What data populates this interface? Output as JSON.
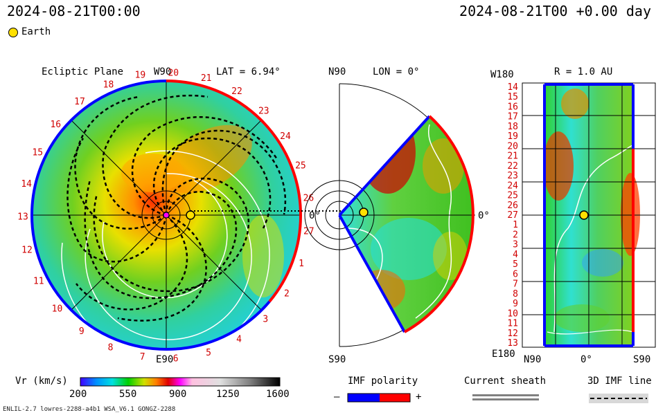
{
  "header": {
    "datetime_left": "2024-08-21T00:00",
    "datetime_right": "2024-08-21T00 +0.00 day"
  },
  "legend": {
    "earth_label": "Earth"
  },
  "ecliptic": {
    "title": "Ecliptic Plane",
    "top_label": "W90",
    "lat_label": "LAT = 6.94°",
    "bottom_label": "E90",
    "right_label": "0°",
    "rim_numbers": [
      "20",
      "21",
      "22",
      "23",
      "24",
      "25",
      "26",
      "27",
      "1",
      "2",
      "3",
      "4",
      "5",
      "6",
      "7",
      "8",
      "9",
      "10",
      "11",
      "12",
      "13",
      "14",
      "15",
      "16",
      "17",
      "18",
      "19"
    ]
  },
  "meridional": {
    "top_label": "N90",
    "lon_label": "LON = 0°",
    "bottom_label": "S90",
    "right_label": "0°"
  },
  "radial": {
    "w_label": "W180",
    "r_label": "R = 1.0 AU",
    "e_label": "E180",
    "x_left": "N90",
    "x_center": "0°",
    "x_right": "S90",
    "y_labels": [
      "14",
      "15",
      "16",
      "17",
      "18",
      "19",
      "20",
      "21",
      "22",
      "23",
      "24",
      "25",
      "26",
      "27",
      "1",
      "2",
      "3",
      "4",
      "5",
      "6",
      "7",
      "8",
      "9",
      "10",
      "11",
      "12",
      "13"
    ]
  },
  "colorbar": {
    "label": "Vr (km/s)",
    "ticks": [
      "200",
      "550",
      "900",
      "1250",
      "1600"
    ]
  },
  "imf": {
    "title": "IMF polarity",
    "minus": "–",
    "plus": "+",
    "minus_color": "#0000ff",
    "plus_color": "#ff0000"
  },
  "sheath": {
    "title": "Current sheath"
  },
  "imfline": {
    "title": "3D IMF line"
  },
  "footer": {
    "left": "ENLIL-2.7 lowres-2288-a4b1 WSA_V6.1 GONGZ-2288"
  }
}
